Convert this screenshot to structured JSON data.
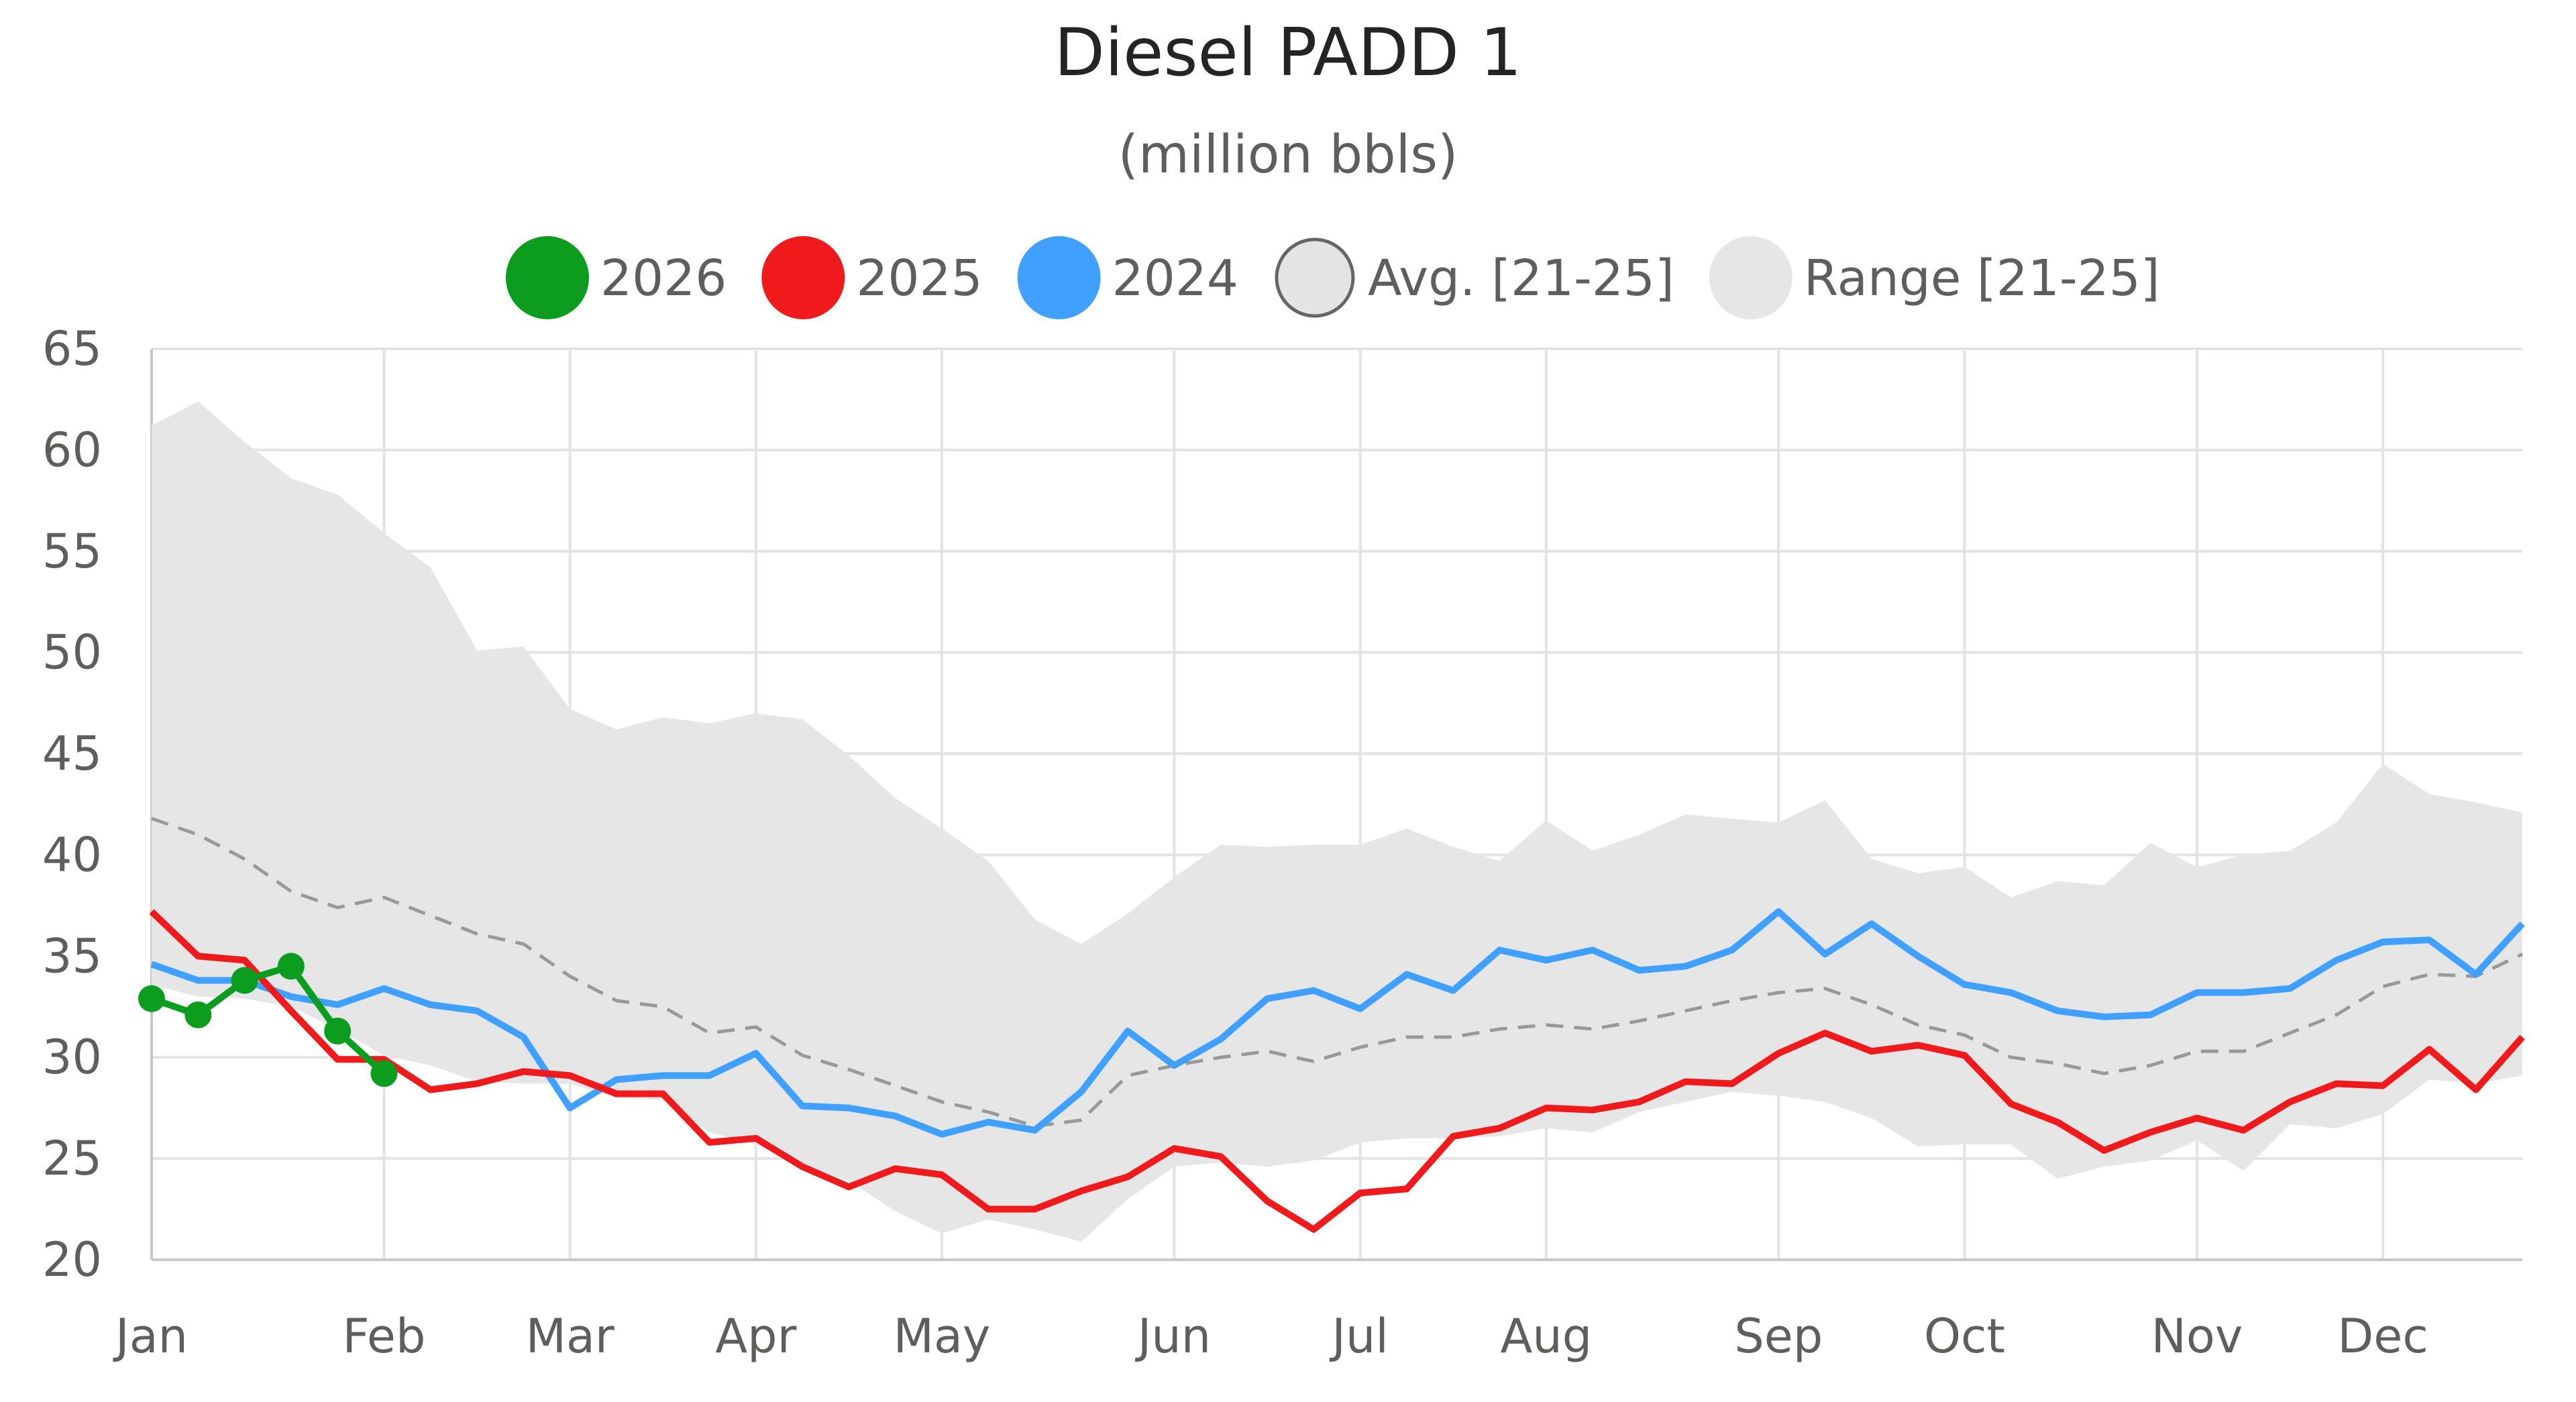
{
  "colors": {
    "s2026": "#0c9d1e",
    "s2025": "#f0191c",
    "s2024": "#3fa0ff",
    "avg": "#999999",
    "range": "#e6e6e6",
    "grid": "#e3e3e3"
  },
  "chart_data": {
    "type": "line",
    "title": "Diesel PADD 1",
    "subtitle": "(million bbls)",
    "ylim": [
      20,
      65
    ],
    "xlim": [
      0,
      51
    ],
    "y_ticks": [
      20,
      25,
      30,
      35,
      40,
      45,
      50,
      55,
      60,
      65
    ],
    "x_ticks": [
      {
        "label": "Jan",
        "week": 0
      },
      {
        "label": "Feb",
        "week": 5
      },
      {
        "label": "Mar",
        "week": 9
      },
      {
        "label": "Apr",
        "week": 13
      },
      {
        "label": "May",
        "week": 17
      },
      {
        "label": "Jun",
        "week": 22
      },
      {
        "label": "Jul",
        "week": 26
      },
      {
        "label": "Aug",
        "week": 30
      },
      {
        "label": "Sep",
        "week": 35
      },
      {
        "label": "Oct",
        "week": 39
      },
      {
        "label": "Nov",
        "week": 44
      },
      {
        "label": "Dec",
        "week": 48
      }
    ],
    "grid": true,
    "legend": {
      "position": "top-center",
      "entries": [
        {
          "label": "2026",
          "key": "s2026",
          "style": "filled"
        },
        {
          "label": "2025",
          "key": "s2025",
          "style": "filled"
        },
        {
          "label": "2024",
          "key": "s2024",
          "style": "filled"
        },
        {
          "label": "Avg. [21-25]",
          "key": "avg",
          "style": "outline"
        },
        {
          "label": "Range [21-25]",
          "key": "range",
          "style": "filled"
        }
      ]
    },
    "series": [
      {
        "name": "2026",
        "key": "s2026",
        "markers": true,
        "values": [
          32.9,
          32.1,
          33.8,
          34.5,
          31.3,
          29.2
        ]
      },
      {
        "name": "2025",
        "key": "s2025",
        "markers": false,
        "values": [
          37.2,
          35.0,
          34.8,
          32.3,
          29.9,
          29.9,
          28.4,
          28.7,
          29.3,
          29.1,
          28.2,
          28.2,
          25.8,
          26.0,
          24.6,
          23.6,
          24.5,
          24.2,
          22.5,
          22.5,
          23.4,
          24.1,
          25.5,
          25.1,
          22.9,
          21.5,
          23.3,
          23.5,
          26.1,
          26.5,
          27.5,
          27.4,
          27.8,
          28.8,
          28.7,
          30.2,
          31.2,
          30.3,
          30.6,
          30.1,
          27.7,
          26.8,
          25.4,
          26.3,
          27.0,
          26.4,
          27.8,
          28.7,
          28.6,
          30.4,
          28.4,
          31.0
        ]
      },
      {
        "name": "2024",
        "key": "s2024",
        "markers": false,
        "values": [
          34.6,
          33.8,
          33.8,
          33.0,
          32.6,
          33.4,
          32.6,
          32.3,
          31.0,
          27.5,
          28.9,
          29.1,
          29.1,
          30.2,
          27.6,
          27.5,
          27.1,
          26.2,
          26.8,
          26.4,
          28.3,
          31.3,
          29.6,
          30.9,
          32.9,
          33.3,
          32.4,
          34.1,
          33.3,
          35.3,
          34.8,
          35.3,
          34.3,
          34.5,
          35.3,
          37.2,
          35.1,
          36.6,
          35.0,
          33.6,
          33.2,
          32.3,
          32.0,
          32.1,
          33.2,
          33.2,
          33.4,
          34.8,
          35.7,
          35.8,
          34.1,
          36.6
        ]
      },
      {
        "name": "Avg. [21-25]",
        "key": "avg",
        "dashed": true,
        "values": [
          41.8,
          41.0,
          39.8,
          38.2,
          37.4,
          37.9,
          37.0,
          36.1,
          35.6,
          34.0,
          32.8,
          32.5,
          31.2,
          31.5,
          30.1,
          29.4,
          28.6,
          27.8,
          27.3,
          26.6,
          26.9,
          29.1,
          29.6,
          30.0,
          30.3,
          29.8,
          30.5,
          31.0,
          31.0,
          31.4,
          31.6,
          31.4,
          31.8,
          32.3,
          32.8,
          33.2,
          33.4,
          32.6,
          31.6,
          31.1,
          30.0,
          29.7,
          29.2,
          29.6,
          30.3,
          30.3,
          31.2,
          32.1,
          33.5,
          34.1,
          34.0,
          35.1
        ]
      },
      {
        "name": "Range [21-25]",
        "key": "range",
        "area": true,
        "high": [
          61.2,
          62.4,
          60.4,
          58.6,
          57.8,
          55.9,
          54.2,
          50.1,
          50.3,
          47.2,
          46.2,
          46.8,
          46.5,
          47.0,
          46.7,
          44.9,
          42.8,
          41.3,
          39.7,
          36.8,
          35.6,
          37.1,
          38.9,
          40.5,
          40.4,
          40.5,
          40.5,
          41.3,
          40.4,
          39.7,
          41.7,
          40.2,
          41.0,
          42.0,
          41.8,
          41.6,
          42.7,
          39.8,
          39.1,
          39.4,
          37.9,
          38.7,
          38.5,
          40.6,
          39.4,
          40.0,
          40.2,
          41.6,
          44.5,
          43.0,
          42.6,
          42.1
        ],
        "low": [
          33.6,
          33.0,
          32.9,
          32.5,
          31.4,
          30.1,
          29.6,
          28.8,
          28.7,
          28.7,
          28.0,
          27.9,
          26.3,
          25.7,
          24.7,
          23.9,
          22.4,
          21.3,
          22.0,
          21.5,
          20.9,
          23.0,
          24.6,
          24.8,
          24.6,
          24.9,
          25.8,
          26.0,
          26.0,
          26.1,
          26.5,
          26.3,
          27.3,
          27.8,
          28.3,
          28.1,
          27.8,
          27.0,
          25.6,
          25.7,
          25.7,
          24.0,
          24.6,
          24.9,
          25.9,
          24.4,
          26.7,
          26.5,
          27.2,
          28.9,
          28.7,
          29.1
        ]
      }
    ]
  }
}
